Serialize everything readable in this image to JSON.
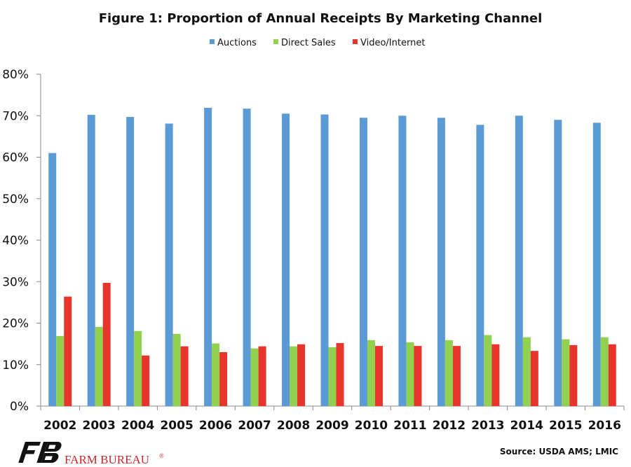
{
  "chart_data": {
    "type": "bar",
    "title": "Figure 1: Proportion of Annual Receipts  By Marketing Channel",
    "categories": [
      "2002",
      "2003",
      "2004",
      "2005",
      "2006",
      "2007",
      "2008",
      "2009",
      "2010",
      "2011",
      "2012",
      "2013",
      "2014",
      "2015",
      "2016"
    ],
    "series": [
      {
        "name": "Auctions",
        "color": "#5b9bd5",
        "values": [
          61.0,
          70.2,
          69.7,
          68.1,
          71.9,
          71.7,
          70.5,
          70.3,
          69.5,
          70.0,
          69.5,
          67.8,
          70.0,
          69.0,
          68.3
        ]
      },
      {
        "name": "Direct Sales",
        "color": "#92d050",
        "values": [
          16.9,
          19.1,
          18.1,
          17.4,
          15.1,
          13.9,
          14.4,
          14.2,
          15.9,
          15.4,
          15.9,
          17.1,
          16.6,
          16.1,
          16.6
        ]
      },
      {
        "name": "Video/Internet",
        "color": "#e8352b",
        "values": [
          26.4,
          29.7,
          12.2,
          14.4,
          13.0,
          14.4,
          14.9,
          15.2,
          14.5,
          14.5,
          14.5,
          14.9,
          13.3,
          14.7,
          14.9
        ]
      }
    ],
    "yticks": [
      "0%",
      "10%",
      "20%",
      "30%",
      "40%",
      "50%",
      "60%",
      "70%",
      "80%"
    ],
    "ylim": [
      0,
      80
    ],
    "grid": false,
    "legend_position": "top-center",
    "source": "Source: USDA  AMS; LMIC"
  },
  "logo": {
    "text": "FARM BUREAU",
    "mark": "®",
    "icon": "farm-bureau-fb-logo"
  }
}
